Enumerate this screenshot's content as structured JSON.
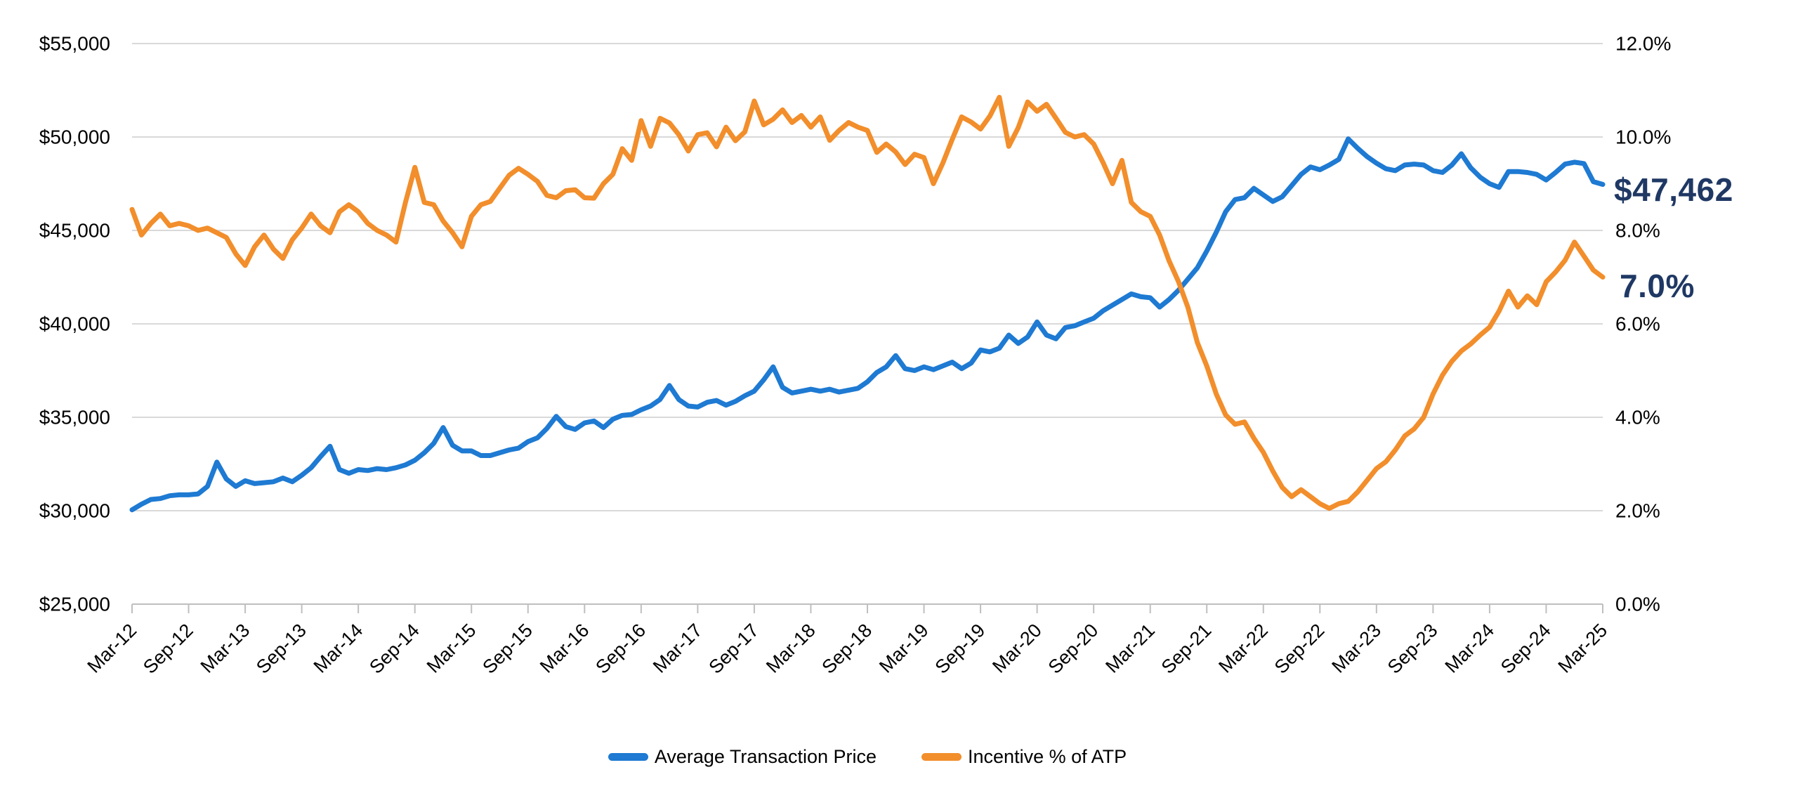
{
  "legend": {
    "atp": "Average Transaction Price",
    "incentive": "Incentive % of ATP"
  },
  "end_labels": {
    "atp": "$47,462",
    "incentive": "7.0%"
  },
  "colors": {
    "atp_blue": "#1E7AD2",
    "incentive_orange": "#F28E2B",
    "label_navy": "#1F3864",
    "grid": "#D9D9D9",
    "axis": "#BFBFBF",
    "text": "#000000",
    "background": "#FFFFFF"
  },
  "chart_data": {
    "type": "line",
    "x_monthly_start": "Mar-12",
    "x_monthly_end": "Mar-25",
    "x_tick_labels": [
      "Mar-12",
      "Sep-12",
      "Mar-13",
      "Sep-13",
      "Mar-14",
      "Sep-14",
      "Mar-15",
      "Sep-15",
      "Mar-16",
      "Sep-16",
      "Mar-17",
      "Sep-17",
      "Mar-18",
      "Sep-18",
      "Mar-19",
      "Sep-19",
      "Mar-20",
      "Sep-20",
      "Mar-21",
      "Sep-21",
      "Mar-22",
      "Sep-22",
      "Mar-23",
      "Sep-23",
      "Mar-24",
      "Sep-24",
      "Mar-25"
    ],
    "left_axis": {
      "min": 25000,
      "max": 55000,
      "step": 5000,
      "labels": [
        "$55,000",
        "$50,000",
        "$45,000",
        "$40,000",
        "$35,000",
        "$30,000",
        "$25,000"
      ]
    },
    "right_axis": {
      "min": 0,
      "max": 12,
      "step": 2,
      "labels": [
        "12.0%",
        "10.0%",
        "8.0%",
        "6.0%",
        "4.0%",
        "2.0%",
        "0.0%"
      ]
    },
    "grid": "horizontal",
    "legend_position": "bottom",
    "series": [
      {
        "name": "Average Transaction Price",
        "axis": "left",
        "color": "#1E7AD2",
        "values": [
          30050,
          30350,
          30600,
          30650,
          30800,
          30850,
          30850,
          30900,
          31300,
          32600,
          31700,
          31300,
          31600,
          31450,
          31500,
          31550,
          31750,
          31550,
          31900,
          32300,
          32900,
          33450,
          32200,
          32000,
          32200,
          32150,
          32250,
          32200,
          32300,
          32450,
          32700,
          33100,
          33600,
          34450,
          33500,
          33200,
          33200,
          32950,
          32950,
          33100,
          33250,
          33350,
          33700,
          33900,
          34400,
          35050,
          34500,
          34350,
          34700,
          34800,
          34450,
          34900,
          35100,
          35150,
          35400,
          35600,
          35950,
          36700,
          35950,
          35600,
          35550,
          35800,
          35900,
          35650,
          35850,
          36150,
          36400,
          37000,
          37700,
          36600,
          36300,
          36400,
          36500,
          36400,
          36500,
          36350,
          36450,
          36550,
          36900,
          37400,
          37700,
          38300,
          37600,
          37500,
          37700,
          37550,
          37750,
          37950,
          37600,
          37900,
          38600,
          38500,
          38700,
          39400,
          38950,
          39300,
          40100,
          39400,
          39200,
          39800,
          39900,
          40100,
          40300,
          40700,
          41000,
          41300,
          41600,
          41450,
          41400,
          40900,
          41300,
          41800,
          42400,
          43000,
          43900,
          44900,
          46000,
          46650,
          46750,
          47250,
          46900,
          46550,
          46800,
          47400,
          48000,
          48400,
          48250,
          48500,
          48800,
          49900,
          49400,
          48950,
          48600,
          48300,
          48200,
          48500,
          48550,
          48500,
          48200,
          48100,
          48500,
          49100,
          48350,
          47850,
          47500,
          47300,
          48150,
          48150,
          48100,
          48000,
          47700,
          48100,
          48550,
          48650,
          48580,
          47610,
          47462
        ]
      },
      {
        "name": "Incentive % of ATP",
        "axis": "right",
        "color": "#F28E2B",
        "values": [
          8.45,
          7.9,
          8.15,
          8.35,
          8.1,
          8.15,
          8.1,
          8.0,
          8.05,
          7.95,
          7.85,
          7.5,
          7.25,
          7.65,
          7.9,
          7.6,
          7.4,
          7.8,
          8.05,
          8.35,
          8.1,
          7.95,
          8.4,
          8.55,
          8.4,
          8.15,
          8.0,
          7.9,
          7.75,
          8.6,
          9.35,
          8.6,
          8.55,
          8.2,
          7.95,
          7.65,
          8.3,
          8.55,
          8.62,
          8.9,
          9.18,
          9.33,
          9.2,
          9.05,
          8.75,
          8.7,
          8.85,
          8.87,
          8.7,
          8.69,
          9.0,
          9.2,
          9.75,
          9.5,
          10.35,
          9.8,
          10.4,
          10.3,
          10.05,
          9.7,
          10.05,
          10.09,
          9.79,
          10.21,
          9.92,
          10.11,
          10.77,
          10.26,
          10.38,
          10.58,
          10.31,
          10.46,
          10.21,
          10.43,
          9.93,
          10.14,
          10.31,
          10.21,
          10.14,
          9.67,
          9.85,
          9.68,
          9.41,
          9.63,
          9.56,
          9.0,
          9.44,
          9.95,
          10.43,
          10.32,
          10.17,
          10.45,
          10.85,
          9.8,
          10.2,
          10.75,
          10.55,
          10.7,
          10.4,
          10.1,
          10.0,
          10.05,
          9.85,
          9.45,
          9.0,
          9.5,
          8.6,
          8.4,
          8.3,
          7.9,
          7.35,
          6.9,
          6.35,
          5.6,
          5.1,
          4.5,
          4.05,
          3.85,
          3.9,
          3.55,
          3.25,
          2.85,
          2.5,
          2.3,
          2.45,
          2.3,
          2.15,
          2.05,
          2.15,
          2.2,
          2.4,
          2.65,
          2.9,
          3.05,
          3.3,
          3.6,
          3.75,
          4.0,
          4.5,
          4.9,
          5.2,
          5.42,
          5.57,
          5.76,
          5.93,
          6.27,
          6.7,
          6.36,
          6.6,
          6.41,
          6.9,
          7.11,
          7.36,
          7.75,
          7.45,
          7.15,
          7.0
        ]
      }
    ]
  }
}
